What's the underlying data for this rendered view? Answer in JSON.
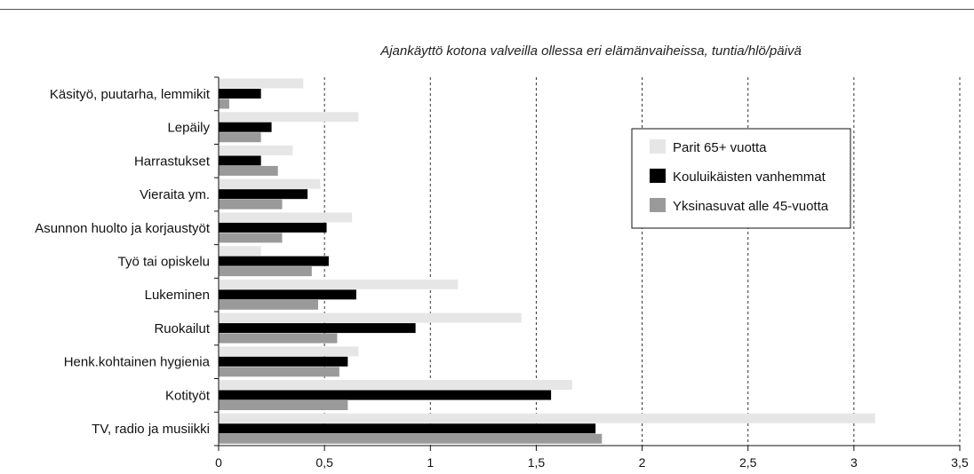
{
  "chart_data": {
    "type": "bar",
    "orientation": "horizontal",
    "title": "Ajankäyttö kotona valveilla ollessa eri elämänvaiheissa, tuntia/hlö/päivä",
    "xlim": [
      0,
      3.5
    ],
    "x_ticks": [
      "0",
      "0,5",
      "1",
      "1,5",
      "2",
      "2,5",
      "3",
      "3,5"
    ],
    "x_tick_values": [
      0,
      0.5,
      1,
      1.5,
      2,
      2.5,
      3,
      3.5
    ],
    "grid": "vertical dashed",
    "legend_position": "right",
    "categories": [
      "Käsityö, puutarha, lemmikit",
      "Lepäily",
      "Harrastukset",
      "Vieraita ym.",
      "Asunnon huolto ja korjaustyöt",
      "Työ tai opiskelu",
      "Lukeminen",
      "Ruokailut",
      "Henk.kohtainen hygienia",
      "Kotityöt",
      "TV, radio ja musiikki"
    ],
    "series": [
      {
        "name": "Parit 65+ vuotta",
        "color": "#e6e6e6",
        "values": [
          0.4,
          0.66,
          0.35,
          0.48,
          0.63,
          0.2,
          1.13,
          1.43,
          0.66,
          1.67,
          3.1
        ]
      },
      {
        "name": "Kouluikäisten vanhemmat",
        "color": "#000000",
        "values": [
          0.2,
          0.25,
          0.2,
          0.42,
          0.51,
          0.52,
          0.65,
          0.93,
          0.61,
          1.57,
          1.78
        ]
      },
      {
        "name": "Yksinasuvat alle 45-vuotta",
        "color": "#9a9a9a",
        "values": [
          0.05,
          0.2,
          0.28,
          0.3,
          0.3,
          0.44,
          0.47,
          0.56,
          0.57,
          0.61,
          1.81
        ]
      }
    ]
  }
}
